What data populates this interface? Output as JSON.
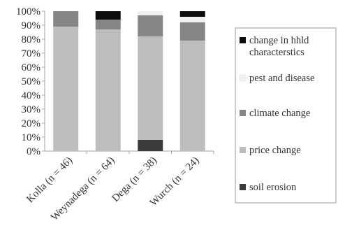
{
  "chart_data": {
    "type": "bar",
    "stacked": true,
    "categories": [
      "Kolla (n = 46)",
      "Weynadega (n = 64)",
      "Dega (n = 38)",
      "Wurch (n = 24)"
    ],
    "series": [
      {
        "name": "soil erosion",
        "values": [
          0,
          0,
          8,
          0
        ],
        "color": "#3a3a3a"
      },
      {
        "name": "price change",
        "values": [
          89,
          87,
          74,
          79
        ],
        "color": "#bdbdbd"
      },
      {
        "name": "climate change",
        "values": [
          11,
          7,
          15,
          13
        ],
        "color": "#858585"
      },
      {
        "name": "pest and disease",
        "values": [
          0,
          0,
          3,
          4
        ],
        "color": "#f1f1f1"
      },
      {
        "name": "change in hhld characterstics",
        "values": [
          0,
          6,
          0,
          4
        ],
        "color": "#0d0d0d"
      }
    ],
    "legend_lines": [
      [
        "change in hhld",
        "characterstics"
      ],
      [
        "pest and disease"
      ],
      [
        "climate change"
      ],
      [
        "price change"
      ],
      [
        "soil erosion"
      ]
    ],
    "ylim": [
      0,
      100
    ],
    "yticks": [
      "0%",
      "10%",
      "20%",
      "30%",
      "40%",
      "50%",
      "60%",
      "70%",
      "80%",
      "90%",
      "100%"
    ],
    "grid": false,
    "legend_position": "right",
    "title": "",
    "xlabel": "",
    "ylabel": ""
  }
}
